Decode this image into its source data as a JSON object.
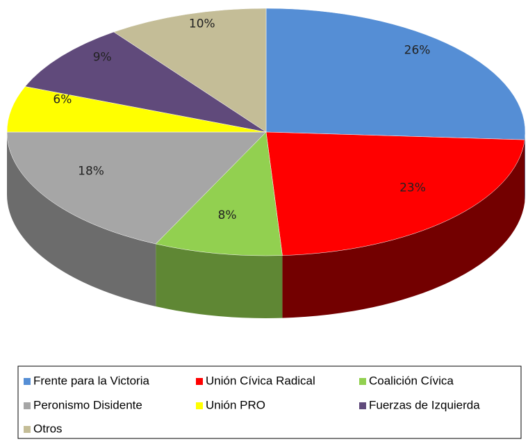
{
  "chart_data": {
    "type": "pie",
    "categories": [
      "Frente para la Victoria",
      "Unión Cívica Radical",
      "Coalición Cívica",
      "Peronismo Disidente",
      "Unión PRO",
      "Fuerzas de Izquierda",
      "Otros"
    ],
    "values": [
      26,
      23,
      8,
      18,
      6,
      9,
      10
    ],
    "value_labels": [
      "26%",
      "23%",
      "8%",
      "18%",
      "6%",
      "9%",
      "10%"
    ],
    "colors": [
      "#558ed5",
      "#ff0000",
      "#92d050",
      "#a6a6a6",
      "#ffff00",
      "#604a7b",
      "#c4bd97"
    ],
    "legend": "bottom"
  }
}
